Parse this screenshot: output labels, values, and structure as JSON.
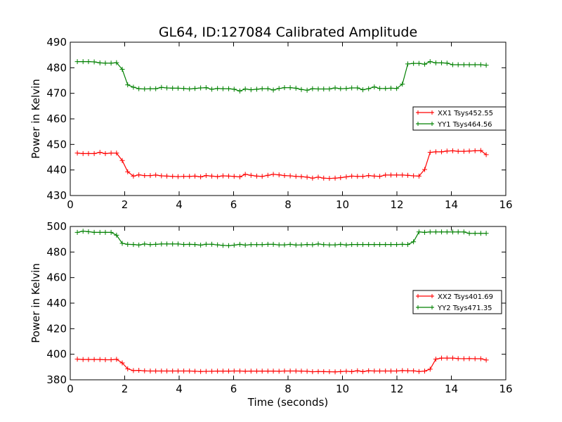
{
  "figure_title": "GL64, ID:127084 Calibrated Amplitude",
  "chart_data": [
    {
      "type": "line",
      "title": "GL64, ID:127084 Calibrated Amplitude",
      "xlabel": "",
      "ylabel": "Power in Kelvin",
      "xlim": [
        0,
        16
      ],
      "ylim": [
        430,
        490
      ],
      "xticks": [
        0,
        2,
        4,
        6,
        8,
        10,
        12,
        14,
        16
      ],
      "yticks": [
        430,
        440,
        450,
        460,
        470,
        480,
        490
      ],
      "grid": false,
      "legend_position": "right",
      "x": [
        0.26,
        0.47,
        0.67,
        0.88,
        1.09,
        1.29,
        1.5,
        1.7,
        1.91,
        2.11,
        2.32,
        2.52,
        2.73,
        2.94,
        3.14,
        3.35,
        3.55,
        3.76,
        3.96,
        4.17,
        4.38,
        4.58,
        4.79,
        4.99,
        5.2,
        5.41,
        5.61,
        5.82,
        6.02,
        6.23,
        6.43,
        6.64,
        6.85,
        7.05,
        7.26,
        7.46,
        7.67,
        7.87,
        8.08,
        8.29,
        8.49,
        8.7,
        8.9,
        9.11,
        9.31,
        9.52,
        9.73,
        9.93,
        10.14,
        10.34,
        10.55,
        10.75,
        10.96,
        11.17,
        11.37,
        11.58,
        11.78,
        11.99,
        12.2,
        12.4,
        12.61,
        12.81,
        13.02,
        13.22,
        13.43,
        13.64,
        13.84,
        14.05,
        14.25,
        14.46,
        14.66,
        14.87,
        15.08,
        15.28
      ],
      "series": [
        {
          "name": "XX1 Tsys452.55",
          "color": "#ff0000",
          "values": [
            446.6,
            446.4,
            446.4,
            446.4,
            446.9,
            446.4,
            446.6,
            446.6,
            443.7,
            439.3,
            437.6,
            438.1,
            437.8,
            437.8,
            438.0,
            437.7,
            437.6,
            437.5,
            437.4,
            437.5,
            437.5,
            437.6,
            437.3,
            437.8,
            437.6,
            437.4,
            437.7,
            437.6,
            437.5,
            437.3,
            438.3,
            437.9,
            437.6,
            437.5,
            437.9,
            438.3,
            438.1,
            437.8,
            437.7,
            437.5,
            437.4,
            437.2,
            436.8,
            437.2,
            436.8,
            436.7,
            436.8,
            437.0,
            437.3,
            437.6,
            437.5,
            437.5,
            437.8,
            437.6,
            437.5,
            438.0,
            438.0,
            438.0,
            438.0,
            437.9,
            437.7,
            437.6,
            440.2,
            446.9,
            447.1,
            447.1,
            447.4,
            447.5,
            447.3,
            447.3,
            447.4,
            447.5,
            447.6,
            446.0
          ]
        },
        {
          "name": "YY1 Tsys464.56",
          "color": "#008000",
          "values": [
            482.4,
            482.4,
            482.4,
            482.3,
            481.9,
            481.8,
            481.8,
            482.0,
            479.4,
            473.3,
            472.4,
            471.8,
            471.7,
            471.8,
            471.8,
            472.3,
            472.1,
            472.0,
            472.0,
            471.9,
            471.7,
            471.9,
            472.1,
            472.2,
            471.6,
            471.9,
            471.8,
            471.8,
            471.6,
            470.9,
            471.7,
            471.4,
            471.6,
            471.8,
            471.8,
            471.3,
            471.9,
            472.2,
            472.2,
            472.0,
            471.5,
            471.2,
            471.8,
            471.7,
            471.7,
            471.7,
            472.1,
            471.8,
            471.9,
            472.1,
            472.1,
            471.4,
            471.8,
            472.5,
            471.9,
            471.9,
            472.0,
            471.9,
            473.6,
            481.5,
            481.7,
            481.7,
            481.4,
            482.4,
            481.9,
            481.9,
            481.8,
            481.2,
            481.2,
            481.2,
            481.2,
            481.2,
            481.2,
            481.0
          ]
        }
      ]
    },
    {
      "type": "line",
      "title": "",
      "xlabel": "Time (seconds)",
      "ylabel": "Power in Kelvin",
      "xlim": [
        0,
        16
      ],
      "ylim": [
        380,
        500
      ],
      "xticks": [
        0,
        2,
        4,
        6,
        8,
        10,
        12,
        14,
        16
      ],
      "yticks": [
        380,
        400,
        420,
        440,
        460,
        480,
        500
      ],
      "grid": false,
      "legend_position": "right",
      "x": [
        0.26,
        0.47,
        0.67,
        0.88,
        1.09,
        1.29,
        1.5,
        1.7,
        1.91,
        2.11,
        2.32,
        2.52,
        2.73,
        2.94,
        3.14,
        3.35,
        3.55,
        3.76,
        3.96,
        4.17,
        4.38,
        4.58,
        4.79,
        4.99,
        5.2,
        5.41,
        5.61,
        5.82,
        6.02,
        6.23,
        6.43,
        6.64,
        6.85,
        7.05,
        7.26,
        7.46,
        7.67,
        7.87,
        8.08,
        8.29,
        8.49,
        8.7,
        8.9,
        9.11,
        9.31,
        9.52,
        9.73,
        9.93,
        10.14,
        10.34,
        10.55,
        10.75,
        10.96,
        11.17,
        11.37,
        11.58,
        11.78,
        11.99,
        12.2,
        12.4,
        12.61,
        12.81,
        13.02,
        13.22,
        13.43,
        13.64,
        13.84,
        14.05,
        14.25,
        14.46,
        14.66,
        14.87,
        15.08,
        15.28
      ],
      "series": [
        {
          "name": "XX2 Tsys401.69",
          "color": "#ff0000",
          "values": [
            396.2,
            395.9,
            395.9,
            395.9,
            395.9,
            395.7,
            395.7,
            396.0,
            393.2,
            388.6,
            387.2,
            387.4,
            387.0,
            386.9,
            386.9,
            386.9,
            386.9,
            386.9,
            386.9,
            386.9,
            386.9,
            386.7,
            386.5,
            386.6,
            386.7,
            386.8,
            386.8,
            386.8,
            386.9,
            386.9,
            386.7,
            386.8,
            386.8,
            386.8,
            386.8,
            386.8,
            386.7,
            386.9,
            386.9,
            386.9,
            386.8,
            386.7,
            386.3,
            386.5,
            386.4,
            386.3,
            386.2,
            386.4,
            386.7,
            386.4,
            387.1,
            386.4,
            387.1,
            386.9,
            386.9,
            386.9,
            386.9,
            386.9,
            387.2,
            387.1,
            387.0,
            386.5,
            386.8,
            388.3,
            396.2,
            397.0,
            397.0,
            397.0,
            396.6,
            396.5,
            396.6,
            396.5,
            396.5,
            395.5
          ]
        },
        {
          "name": "YY2 Tsys471.35",
          "color": "#008000",
          "values": [
            495.4,
            496.3,
            495.9,
            495.4,
            495.4,
            495.4,
            495.4,
            493.2,
            486.8,
            486.0,
            485.9,
            485.5,
            486.3,
            485.8,
            486.0,
            486.3,
            486.3,
            486.3,
            486.3,
            485.9,
            486.0,
            485.9,
            485.4,
            486.1,
            486.1,
            485.6,
            485.2,
            485.0,
            485.4,
            486.0,
            485.4,
            485.8,
            485.8,
            485.8,
            486.0,
            486.0,
            485.6,
            485.6,
            486.0,
            485.5,
            485.6,
            485.9,
            485.7,
            486.3,
            485.8,
            485.6,
            485.6,
            486.0,
            485.5,
            485.9,
            485.9,
            485.9,
            485.9,
            485.9,
            485.9,
            485.9,
            485.9,
            485.9,
            486.0,
            485.9,
            488.0,
            495.7,
            495.4,
            495.7,
            495.7,
            495.7,
            495.7,
            495.7,
            495.7,
            495.7,
            494.6,
            494.6,
            494.6,
            494.6
          ]
        }
      ]
    }
  ]
}
